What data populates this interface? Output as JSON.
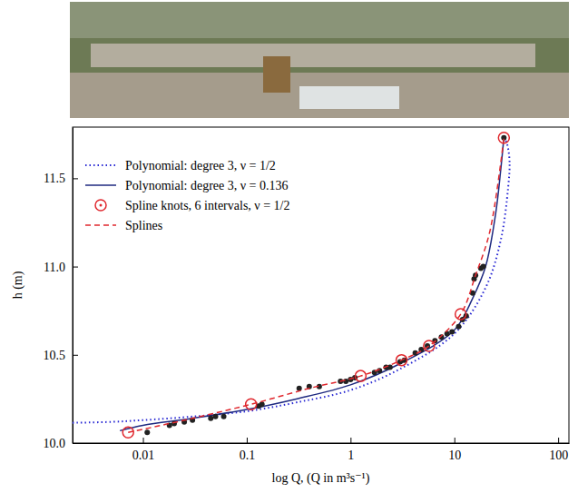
{
  "chart_data": {
    "type": "line",
    "x_label": "log Q, (Q in m³s⁻¹)",
    "y_label": "h (m)",
    "log": "x",
    "grid": false,
    "legend": "upper left",
    "xlim": [
      0.0021,
      127
    ],
    "ylim": [
      10.0,
      11.79
    ],
    "xticks": [
      0.01,
      0.1,
      1,
      10,
      100
    ],
    "yticks": [
      {
        "value": 10.0,
        "label": "10.0"
      },
      {
        "value": 10.5,
        "label": "10.5"
      },
      {
        "value": 11.0,
        "label": "11.0"
      },
      {
        "value": 11.5,
        "label": "11.5"
      }
    ],
    "series": [
      {
        "name": "Polynomial: degree 3, ν = 1/2",
        "type": "line",
        "line_style": "dotted",
        "color": "#2a2ad4",
        "x": [
          0.0021,
          0.005,
          0.01,
          0.03,
          0.1,
          0.3,
          1,
          3,
          10,
          20,
          28,
          33,
          34,
          32,
          30
        ],
        "values": [
          10.115,
          10.12,
          10.13,
          10.15,
          10.18,
          10.23,
          10.3,
          10.42,
          10.62,
          10.88,
          11.15,
          11.45,
          11.6,
          11.7,
          11.73
        ]
      },
      {
        "name": "Polynomial: degree 3, ν = 0.136",
        "type": "line",
        "line_style": "solid",
        "color": "#1f2a80",
        "x": [
          0.006,
          0.01,
          0.03,
          0.1,
          0.3,
          1,
          3,
          10,
          15,
          20,
          25,
          28,
          30
        ],
        "values": [
          10.07,
          10.1,
          10.14,
          10.19,
          10.25,
          10.33,
          10.45,
          10.64,
          10.82,
          11.0,
          11.3,
          11.55,
          11.73
        ]
      },
      {
        "type": "scatter",
        "marker": "dot",
        "color": "#222222",
        "x": [
          0.011,
          0.018,
          0.02,
          0.025,
          0.03,
          0.045,
          0.05,
          0.06,
          0.13,
          0.14,
          0.32,
          0.4,
          0.5,
          0.8,
          0.9,
          1.0,
          1.1,
          1.7,
          1.9,
          2.2,
          2.4,
          3.0,
          3.3,
          4.2,
          4.8,
          5.5,
          6.5,
          7.5,
          8.5,
          9.5,
          11,
          12,
          13,
          15,
          15.5,
          16,
          18,
          19,
          30
        ],
        "values": [
          10.06,
          10.1,
          10.11,
          10.12,
          10.13,
          10.14,
          10.15,
          10.15,
          10.21,
          10.22,
          10.31,
          10.32,
          10.32,
          10.35,
          10.35,
          10.36,
          10.37,
          10.4,
          10.41,
          10.43,
          10.43,
          10.46,
          10.47,
          10.51,
          10.53,
          10.55,
          10.58,
          10.6,
          10.62,
          10.63,
          10.66,
          10.7,
          10.72,
          10.85,
          10.93,
          10.95,
          10.99,
          11.0,
          11.73
        ]
      },
      {
        "name": "Spline knots, 6 intervals, ν = 1/2",
        "type": "scatter",
        "marker": "open-circle",
        "color": "#e0282e",
        "x": [
          0.0072,
          0.11,
          1.25,
          3.1,
          5.7,
          11.5,
          30
        ],
        "values": [
          10.06,
          10.22,
          10.38,
          10.47,
          10.55,
          10.73,
          11.73
        ]
      },
      {
        "name": "Splines",
        "type": "line",
        "line_style": "dashed",
        "color": "#e0282e",
        "x": [
          0.0072,
          0.03,
          0.11,
          0.4,
          1.25,
          3.1,
          5.7,
          11.5,
          16,
          22,
          30
        ],
        "values": [
          10.06,
          10.14,
          10.22,
          10.31,
          10.38,
          10.47,
          10.55,
          10.73,
          10.95,
          11.2,
          11.73
        ]
      }
    ]
  }
}
